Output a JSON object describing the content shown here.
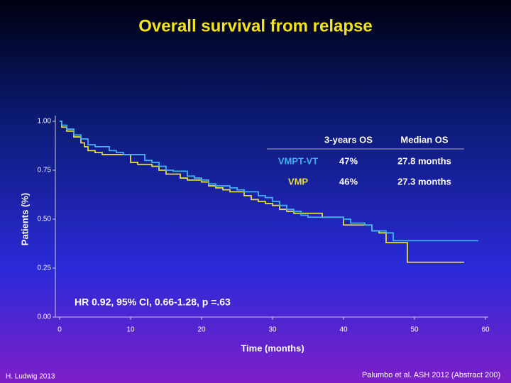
{
  "chart_data": {
    "type": "step",
    "title": "Overall survival  from relapse",
    "x_label": "Time (months)",
    "y_label": "Patients (%)",
    "xlim": [
      0,
      60
    ],
    "ylim": [
      0,
      1
    ],
    "xticks": [
      0,
      10,
      20,
      30,
      40,
      50,
      60
    ],
    "yticks": [
      {
        "value": 1,
        "label": "1.00"
      },
      0.75,
      {
        "value": 0.5,
        "label": "0.50"
      },
      0.25,
      {
        "value": 0,
        "label": "0.00"
      }
    ],
    "series": [
      {
        "name": "VMPT-VT",
        "color": "#3fb0f0",
        "x": [
          0,
          0.3,
          1,
          2,
          3,
          4,
          5,
          7,
          8,
          9,
          12,
          13,
          14,
          15,
          16,
          18,
          19,
          20,
          21,
          22,
          24,
          25,
          26,
          28,
          29,
          30,
          31,
          32,
          33,
          34,
          35,
          40,
          41,
          43,
          44,
          46,
          47,
          59
        ],
        "values": [
          1.0,
          0.98,
          0.96,
          0.93,
          0.91,
          0.88,
          0.87,
          0.85,
          0.84,
          0.83,
          0.8,
          0.79,
          0.77,
          0.75,
          0.745,
          0.72,
          0.71,
          0.7,
          0.68,
          0.67,
          0.66,
          0.65,
          0.64,
          0.62,
          0.61,
          0.59,
          0.57,
          0.55,
          0.54,
          0.52,
          0.51,
          0.5,
          0.48,
          0.47,
          0.44,
          0.43,
          0.39,
          0.39
        ]
      },
      {
        "name": "VMP",
        "color": "#e6dc3c",
        "x": [
          0,
          0.3,
          1,
          2,
          3,
          3.5,
          4,
          5,
          6,
          10,
          11,
          13,
          14,
          15,
          17,
          18,
          20,
          21,
          22,
          23,
          24,
          26,
          27,
          28,
          29,
          30,
          31,
          32,
          33,
          37,
          40,
          44,
          45,
          46,
          49,
          57
        ],
        "values": [
          1.0,
          0.97,
          0.95,
          0.92,
          0.89,
          0.87,
          0.85,
          0.84,
          0.83,
          0.79,
          0.78,
          0.77,
          0.75,
          0.73,
          0.71,
          0.7,
          0.69,
          0.67,
          0.66,
          0.65,
          0.64,
          0.62,
          0.6,
          0.59,
          0.58,
          0.57,
          0.55,
          0.54,
          0.53,
          0.51,
          0.47,
          0.44,
          0.43,
          0.38,
          0.28,
          0.28
        ]
      }
    ],
    "table": {
      "columns": [
        "3-years OS",
        "Median OS"
      ],
      "rows": [
        [
          "47%",
          "27.8 months"
        ],
        [
          "46%",
          "27.3 months"
        ]
      ]
    },
    "annotation": "HR 0.92, 95% CI, 0.66-1.28, p =.63"
  },
  "footer": {
    "left": "H. Ludwig 2013",
    "right": "Palumbo et al. ASH 2012 (Abstract 200)"
  }
}
